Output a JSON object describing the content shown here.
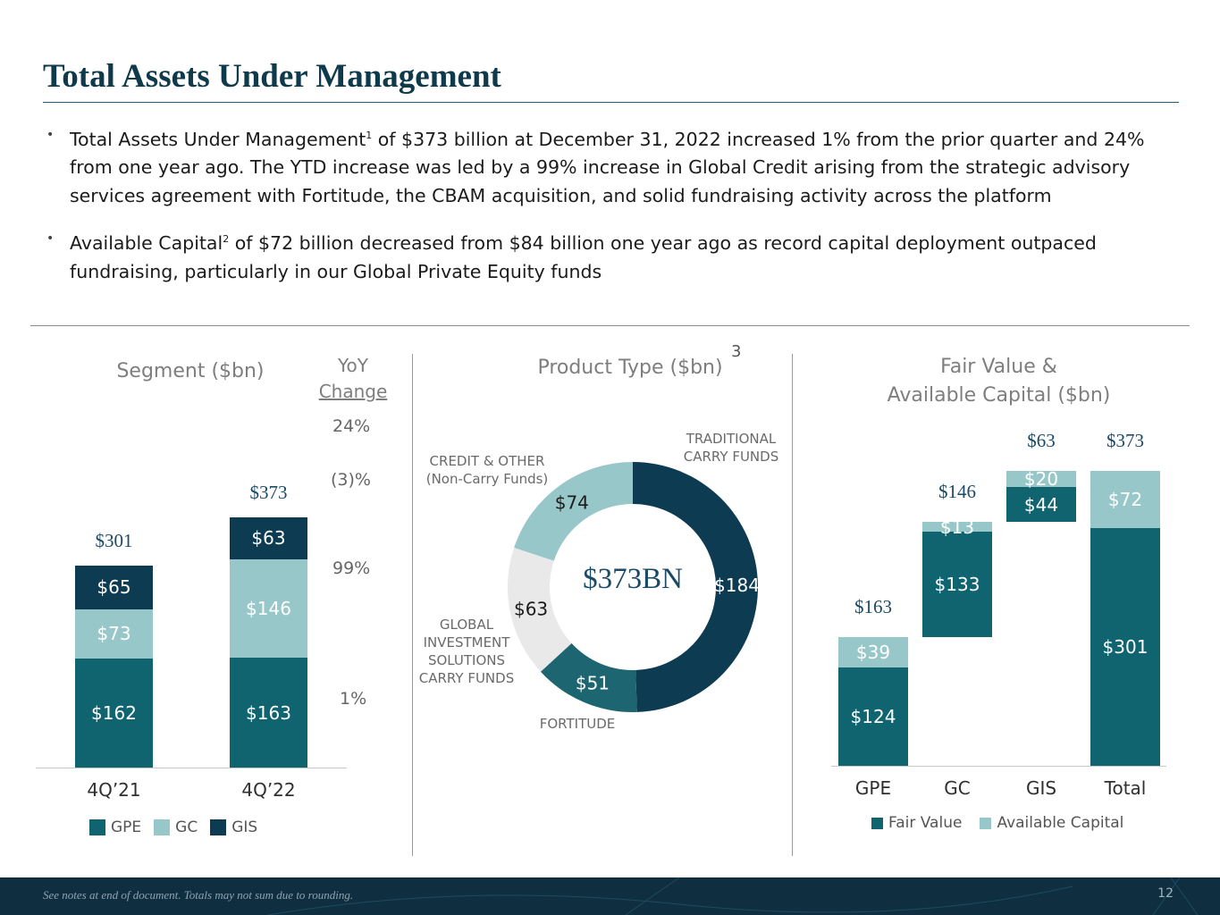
{
  "title": "Total Assets Under Management",
  "bullets": [
    {
      "pre": "Total Assets Under Management",
      "sup": "1",
      "post": " of $373 billion at December 31, 2022 increased 1% from the prior quarter and 24% from one year ago. The YTD increase was led by a 99% increase in Global Credit arising from the strategic advisory services agreement with Fortitude, the CBAM acquisition, and solid fundraising activity across the platform"
    },
    {
      "pre": "Available Capital",
      "sup": "2",
      "post": " of $72 billion decreased from $84 billion one year ago as record capital deployment outpaced fundraising, particularly in our Global Private Equity funds"
    }
  ],
  "colors": {
    "gpe": "#0f6470",
    "gc": "#98c7c9",
    "gis": "#0d3b52",
    "gis_light": "#e9e9e9",
    "trad": "#0d3b52",
    "fortitude": "#1d6570"
  },
  "chart_data": [
    {
      "type": "bar",
      "stacked": true,
      "title": "Segment ($bn)",
      "categories": [
        "4Q’21",
        "4Q’22"
      ],
      "series": [
        {
          "name": "GPE",
          "values": [
            162,
            163
          ],
          "labels": [
            "$162",
            "$163"
          ]
        },
        {
          "name": "GC",
          "values": [
            73,
            146
          ],
          "labels": [
            "$73",
            "$146"
          ]
        },
        {
          "name": "GIS",
          "values": [
            65,
            63
          ],
          "labels": [
            "$65",
            "$63"
          ]
        }
      ],
      "totals": [
        "$301",
        "$373"
      ],
      "yoy_header": [
        "YoY",
        "Change"
      ],
      "yoy": [
        "24%",
        "(3)%",
        "99%",
        "1%"
      ],
      "legend": [
        "GPE",
        "GC",
        "GIS"
      ]
    },
    {
      "type": "pie",
      "donut": true,
      "title": "Product Type ($bn)",
      "title_sup": "3",
      "center_label": "$373BN",
      "slices": [
        {
          "name": "TRADITIONAL CARRY FUNDS",
          "value": 184,
          "label": "$184"
        },
        {
          "name": "FORTITUDE",
          "value": 51,
          "label": "$51"
        },
        {
          "name": "GLOBAL INVESTMENT SOLUTIONS CARRY FUNDS",
          "value": 63,
          "label": "$63"
        },
        {
          "name": "CREDIT & OTHER (Non-Carry Funds)",
          "value": 74,
          "label": "$74"
        }
      ],
      "slice_names": {
        "trad": [
          "TRADITIONAL",
          "CARRY FUNDS"
        ],
        "fort": [
          "FORTITUDE"
        ],
        "gis": [
          "GLOBAL",
          "INVESTMENT",
          "SOLUTIONS",
          "CARRY FUNDS"
        ],
        "credit": [
          "CREDIT & OTHER",
          "(Non-Carry Funds)"
        ]
      }
    },
    {
      "type": "bar",
      "waterfall": true,
      "title": [
        "Fair Value &",
        "Available Capital ($bn)"
      ],
      "categories": [
        "GPE",
        "GC",
        "GIS",
        "Total"
      ],
      "fair_value": [
        124,
        133,
        44,
        301
      ],
      "available_capital": [
        39,
        13,
        20,
        72
      ],
      "fv_labels": [
        "$124",
        "$133",
        "$44",
        "$301"
      ],
      "ac_labels": [
        "$39",
        "$13",
        "$20",
        "$72"
      ],
      "totals": [
        "$163",
        "$146",
        "$63",
        "$373"
      ],
      "legend": [
        "Fair Value",
        "Available Capital"
      ]
    }
  ],
  "footer": {
    "note": "See notes at end of document. Totals may not sum due to rounding.",
    "page": "12"
  }
}
